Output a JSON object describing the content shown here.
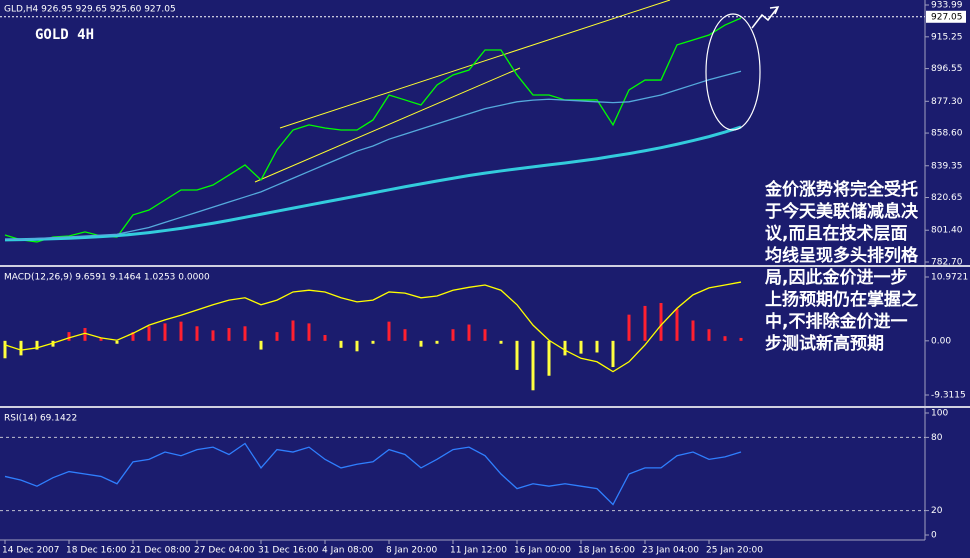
{
  "chart_data": [
    {
      "type": "line",
      "title": "GOLD 4H",
      "subtitle": "GLD,H4  926.95 929.65 925.60 927.05",
      "last_price": 927.05,
      "ylim": [
        780.93,
        936.93
      ],
      "yticks": [
        933.99,
        915.25,
        896.55,
        {
          "value": 877.3,
          "label": "877.30"
        },
        {
          "value": 858.6,
          "label": "858.60"
        },
        839.35,
        820.65,
        {
          "value": 801.4,
          "label": "801.40"
        },
        {
          "value": 782.7,
          "label": "782.70"
        }
      ],
      "series": [
        {
          "color": "#00ff00",
          "values": [
            798.6,
            795.7,
            794.5,
            797.4,
            798.0,
            800.4,
            798.0,
            797.4,
            810.4,
            813.3,
            819.2,
            825.1,
            825.1,
            828.0,
            833.9,
            839.8,
            831.0,
            848.7,
            860.4,
            863.4,
            861.6,
            860.4,
            860.4,
            866.3,
            881.0,
            878.1,
            875.1,
            886.9,
            892.8,
            895.7,
            907.5,
            907.5,
            892.8,
            881.0,
            881.0,
            878.1,
            878.1,
            878.1,
            863.4,
            884.0,
            889.8,
            889.8,
            910.5,
            913.4,
            916.3,
            922.2,
            926.3
          ]
        },
        {
          "color": "#33ccdd",
          "values": [
            795.7,
            795.9,
            796.1,
            796.4,
            796.7,
            797.1,
            797.6,
            798.2,
            799,
            800,
            801.2,
            802.5,
            804,
            805.5,
            807.2,
            809,
            810.8,
            812.6,
            814.4,
            816.2,
            818,
            819.8,
            821.6,
            823.4,
            825.2,
            827,
            828.7,
            830.4,
            832,
            833.6,
            835,
            836.3,
            837.5,
            838.7,
            839.9,
            841,
            842.2,
            843.5,
            845,
            846.5,
            848.2,
            850,
            852,
            854.2,
            856.5,
            859.2,
            862.2
          ]
        },
        {
          "color": "#55aadd",
          "values": [
            796,
            796,
            796.5,
            797,
            797.5,
            798,
            798.5,
            799,
            801,
            803,
            806,
            809,
            812,
            815,
            818,
            821,
            824,
            828,
            832,
            836,
            840,
            844,
            848,
            851,
            855,
            858,
            861,
            864,
            867,
            870,
            873,
            875,
            877,
            878,
            878.5,
            878,
            877.5,
            877,
            876.5,
            877,
            879,
            881,
            884,
            887,
            890,
            892.5,
            895
          ]
        }
      ],
      "annotation": [
        "金价涨势将完全受托",
        "于今天美联储减息决",
        "议,而且在技术层面",
        "均线呈现多头排列格",
        "局,因此金价进一步",
        "上扬预期仍在掌握之",
        "中,不排除金价进一",
        "步测试新高预期"
      ]
    },
    {
      "type": "bar",
      "title": "MACD(12,26,9) 9.6591 9.1464 1.0253 0.0000",
      "ylim": [
        -11.2,
        12.69
      ],
      "yticks": [
        10.9721,
        {
          "value": 0,
          "label": "0.00"
        },
        -9.3115
      ],
      "up_color": "#ff2030",
      "down_color": "#ffff40",
      "values": [
        -3,
        -2.5,
        -1.5,
        -1,
        1.5,
        2.2,
        0.5,
        -0.5,
        1.5,
        2.5,
        3,
        3.3,
        2.5,
        1.8,
        2.2,
        2.5,
        -1.5,
        1.5,
        3.5,
        3,
        1,
        -1.2,
        -1.8,
        -0.5,
        3.3,
        2,
        -1,
        -0.5,
        2,
        2.8,
        2,
        -0.5,
        -5,
        -8.5,
        -6,
        -2.5,
        -2.2,
        -2,
        -4.5,
        4.5,
        6,
        6.5,
        5.5,
        3.5,
        2,
        0.8,
        0.5
      ],
      "series": [
        {
          "color": "#ffff00",
          "values": [
            -0.7,
            -1.6,
            -1.2,
            -0.4,
            0.5,
            1.3,
            0.5,
            0.1,
            1.3,
            2.7,
            3.6,
            4.4,
            5.3,
            6.2,
            7.0,
            7.4,
            6.2,
            7.0,
            8.4,
            8.7,
            8.4,
            7.4,
            6.7,
            7.0,
            8.4,
            8.2,
            7.4,
            7.7,
            8.7,
            9.2,
            9.6,
            8.7,
            6.2,
            2.7,
            0.1,
            -1.6,
            -3.0,
            -3.6,
            -5.3,
            -3.6,
            -0.7,
            2.7,
            5.6,
            7.9,
            9.1,
            9.6,
            10.1
          ]
        }
      ]
    },
    {
      "type": "line",
      "title": "RSI(14) 69.1422",
      "ylim": [
        -4.1,
        104.1
      ],
      "yticks": [
        100,
        80,
        20,
        0
      ],
      "grid_levels": [
        80,
        20
      ],
      "categories": [
        "14 Dec 2007",
        null,
        null,
        null,
        "18 Dec 16:00",
        null,
        null,
        null,
        "21 Dec 08:00",
        null,
        null,
        null,
        "27 Dec 04:00",
        null,
        null,
        null,
        "31 Dec 16:00",
        null,
        null,
        null,
        "4 Jan 08:00",
        null,
        null,
        null,
        "8 Jan 20:00",
        null,
        null,
        null,
        "11 Jan 12:00",
        null,
        null,
        null,
        "16 Jan 00:00",
        null,
        null,
        null,
        "18 Jan 16:00",
        null,
        null,
        null,
        "23 Jan 04:00",
        null,
        null,
        null,
        "25 Jan 20:00",
        null,
        null
      ],
      "series": [
        {
          "color": "#2f7fff",
          "values": [
            48,
            45,
            40,
            47,
            52,
            50,
            48,
            42,
            60,
            62,
            68,
            65,
            70,
            72,
            66,
            75,
            55,
            70,
            68,
            72,
            62,
            55,
            58,
            60,
            70,
            66,
            55,
            62,
            70,
            72,
            65,
            50,
            38,
            42,
            40,
            42,
            40,
            38,
            25,
            50,
            55,
            55,
            65,
            68,
            62,
            64,
            68
          ]
        }
      ]
    }
  ]
}
